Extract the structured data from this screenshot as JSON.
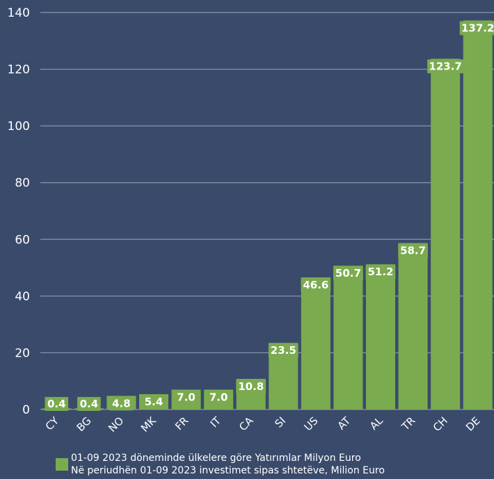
{
  "colors": {
    "background": "#3a4a6b",
    "bar": "#7aab4f",
    "grid": "#8a96ad",
    "text": "#ffffff"
  },
  "chart_data": {
    "type": "bar",
    "categories": [
      "CY",
      "BG",
      "NO",
      "MK",
      "FR",
      "IT",
      "CA",
      "SI",
      "US",
      "AT",
      "AL",
      "TR",
      "CH",
      "DE"
    ],
    "series": [
      {
        "values": [
          0.4,
          0.4,
          4.8,
          5.4,
          7.0,
          7.0,
          10.8,
          23.5,
          46.6,
          50.7,
          51.2,
          58.7,
          123.7,
          137.2
        ]
      }
    ],
    "data_labels": [
      "0.4",
      "0.4",
      "4.8",
      "5.4",
      "7.0",
      "7.0",
      "10.8",
      "23.5",
      "46.6",
      "50.7",
      "51.2",
      "58.7",
      "123.7",
      "137.2"
    ],
    "ylim": [
      0,
      140
    ],
    "yticks": [
      0,
      20,
      40,
      60,
      80,
      100,
      120,
      140
    ],
    "grid": true,
    "legend": {
      "position": "bottom",
      "line1": "01-09 2023 döneminde ülkelere göre Yatırımlar  Milyon Euro",
      "line2": "Në periudhën 01-09 2023 investimet sipas shtetëve, Milion Euro"
    }
  }
}
